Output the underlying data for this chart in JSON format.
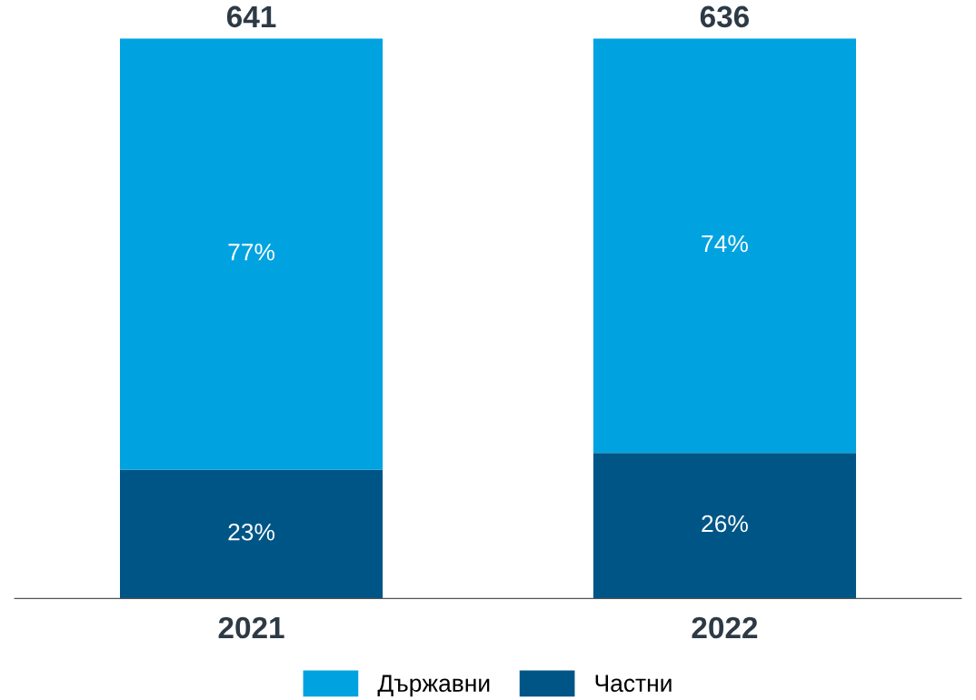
{
  "chart_data": {
    "type": "bar",
    "stacked": true,
    "categories": [
      "2021",
      "2022"
    ],
    "series": [
      {
        "name": "Частни",
        "color": "#005587",
        "values": [
          23,
          26
        ],
        "value_labels": [
          "23%",
          "26%"
        ]
      },
      {
        "name": "Държавни",
        "color": "#00a3e0",
        "values": [
          77,
          74
        ],
        "value_labels": [
          "77%",
          "74%"
        ]
      }
    ],
    "annotations": [
      {
        "text": "641",
        "x": "2021",
        "y": 100
      },
      {
        "text": "636",
        "x": "2022",
        "y": 100
      }
    ],
    "legend": "bottom",
    "grid": false,
    "tick_labels": "x"
  }
}
